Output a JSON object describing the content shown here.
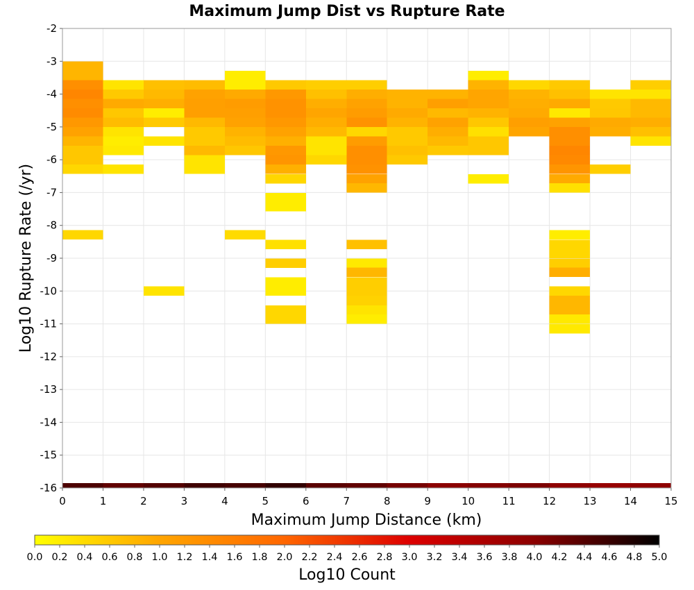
{
  "chart_data": {
    "type": "heatmap",
    "title": "Maximum Jump Dist vs Rupture Rate",
    "xlabel": "Maximum Jump Distance (km)",
    "ylabel": "Log10 Rupture Rate (/yr)",
    "xlim": [
      0,
      15
    ],
    "ylim": [
      -16,
      -2
    ],
    "x_ticks": [
      "0",
      "1",
      "2",
      "3",
      "4",
      "5",
      "6",
      "7",
      "8",
      "9",
      "10",
      "11",
      "12",
      "13",
      "14",
      "15"
    ],
    "y_ticks": [
      "-2",
      "-3",
      "-4",
      "-5",
      "-6",
      "-7",
      "-8",
      "-9",
      "-10",
      "-11",
      "-12",
      "-13",
      "-14",
      "-15",
      "-16"
    ],
    "grid": true,
    "colorbar": {
      "label": "Log10 Count",
      "range": [
        0,
        5
      ],
      "tick_labels": [
        "0.0",
        "0.2",
        "0.4",
        "0.6",
        "0.8",
        "1.0",
        "1.2",
        "1.4",
        "1.6",
        "1.8",
        "2.0",
        "2.2",
        "2.4",
        "2.6",
        "2.8",
        "3.0",
        "3.2",
        "3.4",
        "3.6",
        "3.8",
        "4.0",
        "4.2",
        "4.4",
        "4.6",
        "4.8",
        "5.0"
      ],
      "colors": [
        "#ffff00",
        "#ffa500",
        "#ff6600",
        "#dd0000",
        "#8b0000",
        "#000000"
      ]
    },
    "x_bin_width": 1,
    "y_bin_height": 0.286,
    "cells": [
      {
        "x": 0,
        "y": -3.15,
        "v": 0.82
      },
      {
        "x": 0,
        "y": -3.43,
        "v": 0.82
      },
      {
        "x": 0,
        "y": -3.72,
        "v": 1.35
      },
      {
        "x": 0,
        "y": -4.0,
        "v": 1.5
      },
      {
        "x": 0,
        "y": -4.29,
        "v": 1.35
      },
      {
        "x": 0,
        "y": -4.58,
        "v": 1.42
      },
      {
        "x": 0,
        "y": -4.86,
        "v": 1.2
      },
      {
        "x": 0,
        "y": -5.15,
        "v": 1.05
      },
      {
        "x": 0,
        "y": -5.43,
        "v": 0.82
      },
      {
        "x": 0,
        "y": -5.72,
        "v": 0.62
      },
      {
        "x": 0,
        "y": -6.0,
        "v": 0.62
      },
      {
        "x": 0,
        "y": -6.29,
        "v": 0.45
      },
      {
        "x": 0,
        "y": -8.29,
        "v": 0.45
      },
      {
        "x": 0,
        "y": -16.0,
        "v": 4.45
      },
      {
        "x": 1,
        "y": -3.72,
        "v": 0.3
      },
      {
        "x": 1,
        "y": -4.0,
        "v": 0.6
      },
      {
        "x": 1,
        "y": -4.29,
        "v": 0.95
      },
      {
        "x": 1,
        "y": -4.58,
        "v": 0.62
      },
      {
        "x": 1,
        "y": -4.86,
        "v": 0.75
      },
      {
        "x": 1,
        "y": -5.15,
        "v": 0.3
      },
      {
        "x": 1,
        "y": -5.43,
        "v": 0.2
      },
      {
        "x": 1,
        "y": -5.72,
        "v": 0.25
      },
      {
        "x": 1,
        "y": -6.29,
        "v": 0.3
      },
      {
        "x": 1,
        "y": -16.0,
        "v": 4.3
      },
      {
        "x": 2,
        "y": -3.72,
        "v": 0.7
      },
      {
        "x": 2,
        "y": -4.0,
        "v": 0.78
      },
      {
        "x": 2,
        "y": -4.29,
        "v": 0.9
      },
      {
        "x": 2,
        "y": -4.58,
        "v": 0.2
      },
      {
        "x": 2,
        "y": -4.86,
        "v": 0.6
      },
      {
        "x": 2,
        "y": -5.43,
        "v": 0.3
      },
      {
        "x": 2,
        "y": -10.0,
        "v": 0.3
      },
      {
        "x": 2,
        "y": -16.0,
        "v": 4.4
      },
      {
        "x": 3,
        "y": -3.72,
        "v": 0.75
      },
      {
        "x": 3,
        "y": -4.0,
        "v": 1.05
      },
      {
        "x": 3,
        "y": -4.29,
        "v": 1.1
      },
      {
        "x": 3,
        "y": -4.58,
        "v": 1.1
      },
      {
        "x": 3,
        "y": -4.86,
        "v": 0.78
      },
      {
        "x": 3,
        "y": -5.15,
        "v": 0.6
      },
      {
        "x": 3,
        "y": -5.43,
        "v": 0.6
      },
      {
        "x": 3,
        "y": -5.72,
        "v": 0.78
      },
      {
        "x": 3,
        "y": -6.0,
        "v": 0.3
      },
      {
        "x": 3,
        "y": -6.29,
        "v": 0.3
      },
      {
        "x": 3,
        "y": -16.0,
        "v": 4.55
      },
      {
        "x": 4,
        "y": -3.43,
        "v": 0.2
      },
      {
        "x": 4,
        "y": -3.72,
        "v": 0.2
      },
      {
        "x": 4,
        "y": -4.0,
        "v": 0.95
      },
      {
        "x": 4,
        "y": -4.29,
        "v": 1.15
      },
      {
        "x": 4,
        "y": -4.58,
        "v": 1.1
      },
      {
        "x": 4,
        "y": -4.86,
        "v": 1.05
      },
      {
        "x": 4,
        "y": -5.15,
        "v": 0.85
      },
      {
        "x": 4,
        "y": -5.43,
        "v": 0.75
      },
      {
        "x": 4,
        "y": -5.72,
        "v": 0.62
      },
      {
        "x": 4,
        "y": -8.29,
        "v": 0.4
      },
      {
        "x": 4,
        "y": -16.0,
        "v": 4.5
      },
      {
        "x": 5,
        "y": -3.72,
        "v": 0.6
      },
      {
        "x": 5,
        "y": -4.0,
        "v": 1.2
      },
      {
        "x": 5,
        "y": -4.29,
        "v": 1.3
      },
      {
        "x": 5,
        "y": -4.58,
        "v": 1.3
      },
      {
        "x": 5,
        "y": -4.86,
        "v": 1.2
      },
      {
        "x": 5,
        "y": -5.15,
        "v": 1.05
      },
      {
        "x": 5,
        "y": -5.43,
        "v": 0.88
      },
      {
        "x": 5,
        "y": -5.72,
        "v": 1.2
      },
      {
        "x": 5,
        "y": -6.0,
        "v": 1.25
      },
      {
        "x": 5,
        "y": -6.29,
        "v": 0.88
      },
      {
        "x": 5,
        "y": -6.58,
        "v": 0.45
      },
      {
        "x": 5,
        "y": -7.15,
        "v": 0.2
      },
      {
        "x": 5,
        "y": -7.43,
        "v": 0.2
      },
      {
        "x": 5,
        "y": -8.58,
        "v": 0.35
      },
      {
        "x": 5,
        "y": -9.15,
        "v": 0.55
      },
      {
        "x": 5,
        "y": -9.72,
        "v": 0.2
      },
      {
        "x": 5,
        "y": -10.0,
        "v": 0.2
      },
      {
        "x": 5,
        "y": -10.58,
        "v": 0.45
      },
      {
        "x": 5,
        "y": -10.86,
        "v": 0.45
      },
      {
        "x": 5,
        "y": -16.0,
        "v": 4.65
      },
      {
        "x": 6,
        "y": -3.72,
        "v": 0.55
      },
      {
        "x": 6,
        "y": -4.0,
        "v": 0.7
      },
      {
        "x": 6,
        "y": -4.29,
        "v": 0.9
      },
      {
        "x": 6,
        "y": -4.58,
        "v": 1.0
      },
      {
        "x": 6,
        "y": -4.86,
        "v": 0.9
      },
      {
        "x": 6,
        "y": -5.15,
        "v": 0.78
      },
      {
        "x": 6,
        "y": -5.43,
        "v": 0.3
      },
      {
        "x": 6,
        "y": -5.72,
        "v": 0.3
      },
      {
        "x": 6,
        "y": -6.0,
        "v": 0.45
      },
      {
        "x": 6,
        "y": -16.0,
        "v": 4.35
      },
      {
        "x": 7,
        "y": -3.72,
        "v": 0.55
      },
      {
        "x": 7,
        "y": -4.0,
        "v": 0.9
      },
      {
        "x": 7,
        "y": -4.29,
        "v": 1.05
      },
      {
        "x": 7,
        "y": -4.58,
        "v": 1.15
      },
      {
        "x": 7,
        "y": -4.86,
        "v": 1.3
      },
      {
        "x": 7,
        "y": -5.15,
        "v": 0.45
      },
      {
        "x": 7,
        "y": -5.43,
        "v": 1.15
      },
      {
        "x": 7,
        "y": -5.72,
        "v": 1.35
      },
      {
        "x": 7,
        "y": -6.0,
        "v": 1.35
      },
      {
        "x": 7,
        "y": -6.29,
        "v": 1.3
      },
      {
        "x": 7,
        "y": -6.58,
        "v": 1.05
      },
      {
        "x": 7,
        "y": -6.86,
        "v": 0.8
      },
      {
        "x": 7,
        "y": -8.58,
        "v": 0.7
      },
      {
        "x": 7,
        "y": -9.15,
        "v": 0.25
      },
      {
        "x": 7,
        "y": -9.43,
        "v": 0.8
      },
      {
        "x": 7,
        "y": -9.72,
        "v": 0.55
      },
      {
        "x": 7,
        "y": -10.0,
        "v": 0.55
      },
      {
        "x": 7,
        "y": -10.29,
        "v": 0.5
      },
      {
        "x": 7,
        "y": -10.58,
        "v": 0.3
      },
      {
        "x": 7,
        "y": -10.86,
        "v": 0.2
      },
      {
        "x": 7,
        "y": -16.0,
        "v": 4.3
      },
      {
        "x": 8,
        "y": -4.0,
        "v": 0.85
      },
      {
        "x": 8,
        "y": -4.29,
        "v": 0.85
      },
      {
        "x": 8,
        "y": -4.58,
        "v": 0.95
      },
      {
        "x": 8,
        "y": -4.86,
        "v": 0.85
      },
      {
        "x": 8,
        "y": -5.15,
        "v": 0.6
      },
      {
        "x": 8,
        "y": -5.43,
        "v": 0.6
      },
      {
        "x": 8,
        "y": -5.72,
        "v": 0.7
      },
      {
        "x": 8,
        "y": -6.0,
        "v": 0.6
      },
      {
        "x": 8,
        "y": -16.0,
        "v": 4.15
      },
      {
        "x": 9,
        "y": -4.0,
        "v": 0.85
      },
      {
        "x": 9,
        "y": -4.29,
        "v": 1.1
      },
      {
        "x": 9,
        "y": -4.58,
        "v": 0.78
      },
      {
        "x": 9,
        "y": -4.86,
        "v": 1.05
      },
      {
        "x": 9,
        "y": -5.15,
        "v": 0.9
      },
      {
        "x": 9,
        "y": -5.43,
        "v": 0.78
      },
      {
        "x": 9,
        "y": -5.72,
        "v": 0.6
      },
      {
        "x": 9,
        "y": -16.0,
        "v": 4.0
      },
      {
        "x": 10,
        "y": -3.43,
        "v": 0.2
      },
      {
        "x": 10,
        "y": -3.72,
        "v": 0.85
      },
      {
        "x": 10,
        "y": -4.0,
        "v": 1.0
      },
      {
        "x": 10,
        "y": -4.29,
        "v": 1.0
      },
      {
        "x": 10,
        "y": -4.58,
        "v": 0.85
      },
      {
        "x": 10,
        "y": -4.86,
        "v": 0.62
      },
      {
        "x": 10,
        "y": -5.15,
        "v": 0.35
      },
      {
        "x": 10,
        "y": -5.43,
        "v": 0.62
      },
      {
        "x": 10,
        "y": -5.72,
        "v": 0.62
      },
      {
        "x": 10,
        "y": -6.58,
        "v": 0.2
      },
      {
        "x": 10,
        "y": -16.0,
        "v": 4.05
      },
      {
        "x": 11,
        "y": -3.72,
        "v": 0.45
      },
      {
        "x": 11,
        "y": -4.0,
        "v": 0.85
      },
      {
        "x": 11,
        "y": -4.29,
        "v": 0.9
      },
      {
        "x": 11,
        "y": -4.58,
        "v": 0.95
      },
      {
        "x": 11,
        "y": -4.86,
        "v": 1.1
      },
      {
        "x": 11,
        "y": -5.15,
        "v": 1.0
      },
      {
        "x": 11,
        "y": -16.0,
        "v": 4.1
      },
      {
        "x": 12,
        "y": -3.72,
        "v": 0.6
      },
      {
        "x": 12,
        "y": -4.0,
        "v": 0.7
      },
      {
        "x": 12,
        "y": -4.29,
        "v": 0.95
      },
      {
        "x": 12,
        "y": -4.58,
        "v": 0.25
      },
      {
        "x": 12,
        "y": -4.86,
        "v": 1.05
      },
      {
        "x": 12,
        "y": -5.15,
        "v": 1.35
      },
      {
        "x": 12,
        "y": -5.43,
        "v": 1.35
      },
      {
        "x": 12,
        "y": -5.72,
        "v": 1.5
      },
      {
        "x": 12,
        "y": -6.0,
        "v": 1.45
      },
      {
        "x": 12,
        "y": -6.29,
        "v": 1.25
      },
      {
        "x": 12,
        "y": -6.58,
        "v": 0.95
      },
      {
        "x": 12,
        "y": -6.86,
        "v": 0.35
      },
      {
        "x": 12,
        "y": -8.29,
        "v": 0.2
      },
      {
        "x": 12,
        "y": -8.58,
        "v": 0.45
      },
      {
        "x": 12,
        "y": -8.86,
        "v": 0.45
      },
      {
        "x": 12,
        "y": -9.15,
        "v": 0.55
      },
      {
        "x": 12,
        "y": -9.43,
        "v": 0.9
      },
      {
        "x": 12,
        "y": -10.0,
        "v": 0.45
      },
      {
        "x": 12,
        "y": -10.29,
        "v": 0.8
      },
      {
        "x": 12,
        "y": -10.58,
        "v": 0.8
      },
      {
        "x": 12,
        "y": -10.86,
        "v": 0.25
      },
      {
        "x": 12,
        "y": -11.15,
        "v": 0.25
      },
      {
        "x": 12,
        "y": -16.0,
        "v": 3.95
      },
      {
        "x": 13,
        "y": -4.0,
        "v": 0.3
      },
      {
        "x": 13,
        "y": -4.29,
        "v": 0.6
      },
      {
        "x": 13,
        "y": -4.58,
        "v": 0.62
      },
      {
        "x": 13,
        "y": -4.86,
        "v": 0.95
      },
      {
        "x": 13,
        "y": -5.15,
        "v": 0.9
      },
      {
        "x": 13,
        "y": -6.29,
        "v": 0.55
      },
      {
        "x": 13,
        "y": -16.0,
        "v": 3.85
      },
      {
        "x": 14,
        "y": -3.72,
        "v": 0.55
      },
      {
        "x": 14,
        "y": -4.0,
        "v": 0.3
      },
      {
        "x": 14,
        "y": -4.29,
        "v": 0.78
      },
      {
        "x": 14,
        "y": -4.58,
        "v": 0.78
      },
      {
        "x": 14,
        "y": -4.86,
        "v": 0.9
      },
      {
        "x": 14,
        "y": -5.15,
        "v": 0.7
      },
      {
        "x": 14,
        "y": -5.43,
        "v": 0.3
      },
      {
        "x": 14,
        "y": -16.0,
        "v": 3.95
      }
    ]
  }
}
